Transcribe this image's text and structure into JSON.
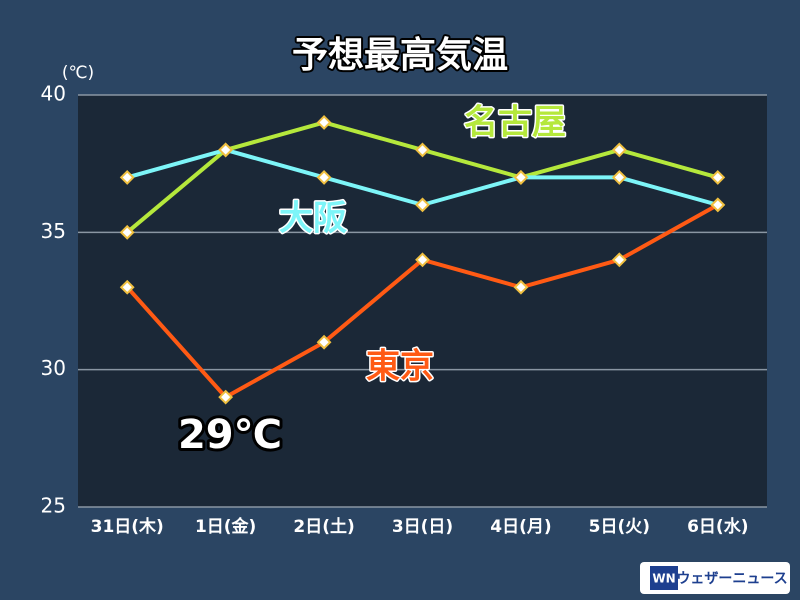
{
  "chart_data": {
    "type": "line",
    "title": "予想最高気温",
    "y_unit": "(℃)",
    "categories": [
      "31日(木)",
      "1日(金)",
      "2日(土)",
      "3日(日)",
      "4日(月)",
      "5日(火)",
      "6日(水)"
    ],
    "series": [
      {
        "name": "名古屋",
        "color": "#b5e83c",
        "values": [
          35,
          38,
          39,
          38,
          37,
          38,
          37
        ]
      },
      {
        "name": "大阪",
        "color": "#7df5f8",
        "values": [
          37,
          38,
          37,
          36,
          37,
          37,
          36
        ]
      },
      {
        "name": "東京",
        "color": "#ff5a14",
        "values": [
          33,
          29,
          31,
          34,
          33,
          34,
          36
        ]
      }
    ],
    "ylim": [
      25,
      40
    ],
    "yticks": [
      25,
      30,
      35,
      40
    ],
    "grid": true,
    "annotation": "29℃",
    "logo_mark": "WN",
    "source": "ウェザーニュース"
  }
}
